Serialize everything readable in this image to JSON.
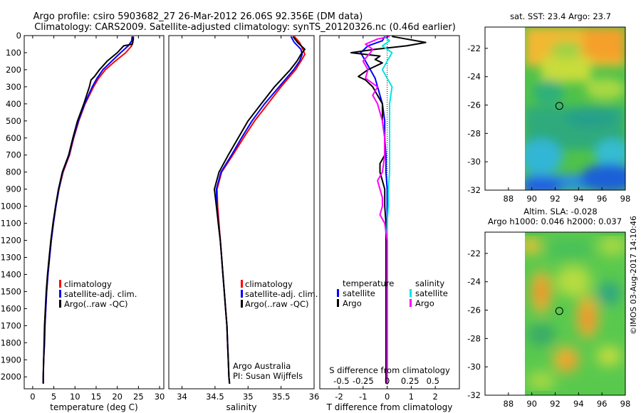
{
  "header": {
    "line1": "Argo profile: csiro 5903682_27 26-Mar-2012 26.06S 92.356E (DM data)",
    "line2": "Climatology: CARS2009. Satellite-adjusted climatology: synTS_20120326.nc (0.46d earlier)"
  },
  "colors": {
    "climatology": "#ff0000",
    "satellite": "#0000ff",
    "argo": "#000000",
    "sal_satellite": "#00e5e5",
    "sal_argo": "#ff00ff"
  },
  "chart_data": [
    {
      "type": "line",
      "id": "temperature",
      "xlabel": "temperature (deg C)",
      "xlim": [
        -2,
        31
      ],
      "xticks": [
        0,
        5,
        10,
        15,
        20,
        25,
        30
      ],
      "ylim": [
        2070,
        0
      ],
      "yticks": [
        0,
        100,
        200,
        300,
        400,
        500,
        600,
        700,
        800,
        900,
        1000,
        1100,
        1200,
        1300,
        1400,
        1500,
        1600,
        1700,
        1800,
        1900,
        2000
      ],
      "legend": [
        "climatology",
        "satellite-adj. clim.",
        "Argo(..raw -QC)"
      ],
      "series": [
        {
          "name": "climatology",
          "color": "#ff0000",
          "depth": [
            5,
            30,
            60,
            100,
            150,
            200,
            250,
            300,
            400,
            500,
            600,
            700,
            800,
            900,
            1000,
            1100,
            1200,
            1300,
            1400,
            1500,
            1600,
            1700,
            1800,
            1900,
            2000,
            2040
          ],
          "values": [
            23.6,
            23.6,
            23.4,
            22.0,
            19.5,
            17.2,
            15.6,
            14.4,
            12.4,
            10.9,
            9.7,
            8.7,
            7.2,
            6.2,
            5.5,
            4.9,
            4.4,
            4.0,
            3.6,
            3.3,
            3.1,
            2.9,
            2.8,
            2.6,
            2.5,
            2.5
          ]
        },
        {
          "name": "satellite-adj. clim.",
          "color": "#0000ff",
          "depth": [
            5,
            30,
            60,
            100,
            150,
            200,
            250,
            300,
            400,
            500,
            600,
            700,
            800,
            900,
            1000,
            1100,
            1200,
            1300,
            1400,
            1500,
            1600,
            1700,
            1800,
            1900,
            2000,
            2040
          ],
          "values": [
            23.5,
            23.4,
            22.6,
            20.8,
            18.7,
            16.6,
            15.2,
            14.1,
            12.3,
            10.8,
            9.6,
            8.6,
            7.1,
            6.2,
            5.5,
            4.9,
            4.4,
            4.0,
            3.6,
            3.3,
            3.1,
            2.9,
            2.8,
            2.6,
            2.5,
            2.5
          ]
        },
        {
          "name": "Argo(..raw -QC)",
          "color": "#000000",
          "depth": [
            5,
            20,
            50,
            60,
            100,
            150,
            200,
            240,
            260,
            300,
            400,
            500,
            600,
            700,
            800,
            900,
            1000,
            1100,
            1200,
            1300,
            1400,
            1500,
            1600,
            1700,
            1800,
            1900,
            2000,
            2040
          ],
          "values": [
            23.8,
            23.8,
            23.6,
            21.5,
            20.0,
            17.6,
            15.8,
            14.6,
            13.8,
            13.4,
            12.1,
            10.6,
            9.5,
            8.5,
            7.0,
            6.1,
            5.4,
            4.8,
            4.3,
            3.9,
            3.5,
            3.2,
            3.0,
            2.8,
            2.7,
            2.6,
            2.5,
            2.5
          ]
        }
      ]
    },
    {
      "type": "line",
      "id": "salinity",
      "xlabel": "salinity",
      "xlim": [
        33.8,
        36.0
      ],
      "xticks": [
        34,
        34.5,
        35,
        35.5,
        36
      ],
      "ylim": [
        2070,
        0
      ],
      "legend": [
        "climatology",
        "satellite-adj. clim.",
        "Argo(..raw -QC)"
      ],
      "annotations": [
        "Argo Australia",
        "PI: Susan Wijffels"
      ],
      "series": [
        {
          "name": "climatology",
          "color": "#ff0000",
          "depth": [
            5,
            40,
            80,
            110,
            150,
            200,
            300,
            400,
            500,
            600,
            700,
            800,
            900,
            1000,
            1100,
            1200,
            1300,
            1400,
            1500,
            1600,
            1700,
            1800,
            1900,
            2000,
            2040
          ],
          "values": [
            35.7,
            35.78,
            35.83,
            35.86,
            35.8,
            35.72,
            35.5,
            35.3,
            35.1,
            34.93,
            34.77,
            34.6,
            34.53,
            34.54,
            34.56,
            34.58,
            34.6,
            34.62,
            34.64,
            34.66,
            34.68,
            34.69,
            34.7,
            34.71,
            34.72
          ]
        },
        {
          "name": "satellite-adj. clim.",
          "color": "#0000ff",
          "depth": [
            5,
            40,
            80,
            110,
            150,
            200,
            300,
            400,
            500,
            600,
            700,
            800,
            900,
            1000,
            1100,
            1200,
            1300,
            1400,
            1500,
            1600,
            1700,
            1800,
            1900,
            2000,
            2040
          ],
          "values": [
            35.65,
            35.7,
            35.8,
            35.82,
            35.78,
            35.69,
            35.47,
            35.25,
            35.06,
            34.9,
            34.75,
            34.59,
            34.52,
            34.53,
            34.55,
            34.58,
            34.6,
            34.62,
            34.64,
            34.66,
            34.68,
            34.69,
            34.7,
            34.71,
            34.72
          ]
        },
        {
          "name": "Argo(..raw -QC)",
          "color": "#000000",
          "depth": [
            5,
            40,
            80,
            110,
            150,
            200,
            300,
            400,
            500,
            600,
            700,
            800,
            900,
            1000,
            1100,
            1200,
            1300,
            1400,
            1500,
            1600,
            1700,
            1800,
            1900,
            2000,
            2040
          ],
          "values": [
            35.68,
            35.75,
            35.86,
            35.8,
            35.74,
            35.64,
            35.4,
            35.2,
            35.0,
            34.85,
            34.7,
            34.56,
            34.49,
            34.52,
            34.55,
            34.58,
            34.6,
            34.62,
            34.64,
            34.66,
            34.68,
            34.69,
            34.7,
            34.71,
            34.72
          ]
        }
      ]
    },
    {
      "type": "line",
      "id": "differences",
      "xlabel": "T difference from climatology",
      "xlabel_top": "S difference from climatology",
      "xlim": [
        -2.8,
        3.0
      ],
      "xticks": [
        -2,
        -1,
        0,
        1,
        2
      ],
      "sticks_labels": [
        "-0.5",
        "-0.25",
        "0",
        "0.25",
        "0.5"
      ],
      "sticks_values": [
        -1.9,
        -1.0,
        0,
        0.95,
        1.9
      ],
      "legend_title_temperature": "temperature",
      "legend_title_salinity": "salinity",
      "legend_items": [
        "satellite",
        "Argo",
        "satellite",
        "Argo"
      ],
      "series": [
        {
          "name": "temperature satellite",
          "color": "#0000ff",
          "depth": [
            5,
            30,
            60,
            100,
            150,
            200,
            250,
            300,
            400,
            500,
            600,
            700,
            800,
            900,
            1000,
            1100,
            1200,
            1400,
            1600,
            1800,
            2000,
            2040
          ],
          "values": [
            -0.1,
            -0.2,
            -0.8,
            -1.1,
            -0.9,
            -0.7,
            -0.5,
            -0.4,
            -0.2,
            -0.1,
            -0.1,
            -0.05,
            -0.05,
            0,
            0,
            0,
            0,
            0,
            0,
            0,
            0,
            0
          ]
        },
        {
          "name": "temperature Argo",
          "color": "#000000",
          "depth": [
            5,
            20,
            40,
            60,
            80,
            100,
            120,
            140,
            160,
            200,
            240,
            260,
            300,
            350,
            400,
            500,
            600,
            700,
            750,
            800,
            850,
            900,
            950,
            1000,
            1100,
            1200,
            1400,
            1600,
            1800,
            2000,
            2040
          ],
          "values": [
            0.2,
            0.8,
            1.6,
            0.8,
            -0.5,
            -1.5,
            -0.3,
            -0.5,
            -0.2,
            -0.8,
            -1.2,
            -0.9,
            -0.6,
            -0.4,
            -0.2,
            -0.2,
            -0.1,
            -0.1,
            -0.3,
            -0.3,
            -0.2,
            -0.1,
            -0.1,
            -0.1,
            -0.05,
            -0.05,
            -0.05,
            -0.05,
            -0.05,
            -0.05,
            -0.05
          ]
        },
        {
          "name": "salinity satellite",
          "color": "#00e5e5",
          "depth": [
            5,
            30,
            60,
            100,
            150,
            200,
            300,
            400,
            500,
            600,
            700,
            800,
            900,
            1000,
            1100,
            1200,
            1400,
            1600,
            1800,
            2000,
            2040
          ],
          "values": [
            -0.1,
            0.1,
            -0.2,
            0.2,
            0.0,
            -0.2,
            0.2,
            0.1,
            0.1,
            0.1,
            0.1,
            0.1,
            0.05,
            0.05,
            0,
            0,
            0,
            0,
            0,
            0,
            0
          ]
        },
        {
          "name": "salinity Argo",
          "color": "#ff00ff",
          "depth": [
            5,
            20,
            50,
            80,
            100,
            150,
            200,
            250,
            300,
            350,
            400,
            500,
            600,
            700,
            800,
            850,
            900,
            950,
            1000,
            1050,
            1100,
            1200,
            1400,
            1600,
            1800,
            2000,
            2040
          ],
          "values": [
            0.1,
            -0.4,
            -0.9,
            -0.6,
            -0.7,
            -1.0,
            -0.8,
            -0.9,
            -0.4,
            -0.6,
            -0.4,
            -0.2,
            -0.1,
            -0.1,
            -0.2,
            -0.4,
            -0.3,
            -0.2,
            -0.2,
            -0.3,
            -0.1,
            0,
            0,
            0,
            0,
            0,
            0
          ]
        }
      ]
    },
    {
      "type": "heatmap",
      "id": "sst_map",
      "title": "sat. SST: 23.4  Argo: 23.7",
      "xlim": [
        86,
        98
      ],
      "ylim": [
        -32,
        -20.5
      ],
      "xticks": [
        88,
        90,
        92,
        94,
        96,
        98
      ],
      "yticks": [
        -22,
        -24,
        -26,
        -28,
        -30,
        -32
      ],
      "data_xlim": [
        90,
        98
      ],
      "marker": {
        "lon": 92.356,
        "lat": -26.06
      }
    },
    {
      "type": "heatmap",
      "id": "sla_map",
      "title_line1": "Altim. SLA: -0.028",
      "title_line2": "Argo h1000: 0.046  h2000: 0.037",
      "xlim": [
        86,
        98
      ],
      "ylim": [
        -32,
        -20.5
      ],
      "xticks": [
        88,
        90,
        92,
        94,
        96,
        98
      ],
      "yticks": [
        -22,
        -24,
        -26,
        -28,
        -30,
        -32
      ],
      "data_xlim": [
        90,
        98
      ],
      "marker": {
        "lon": 92.356,
        "lat": -26.06
      }
    }
  ],
  "footer": {
    "credit": "©IMOS 03-Aug-2017 14:10:46"
  }
}
